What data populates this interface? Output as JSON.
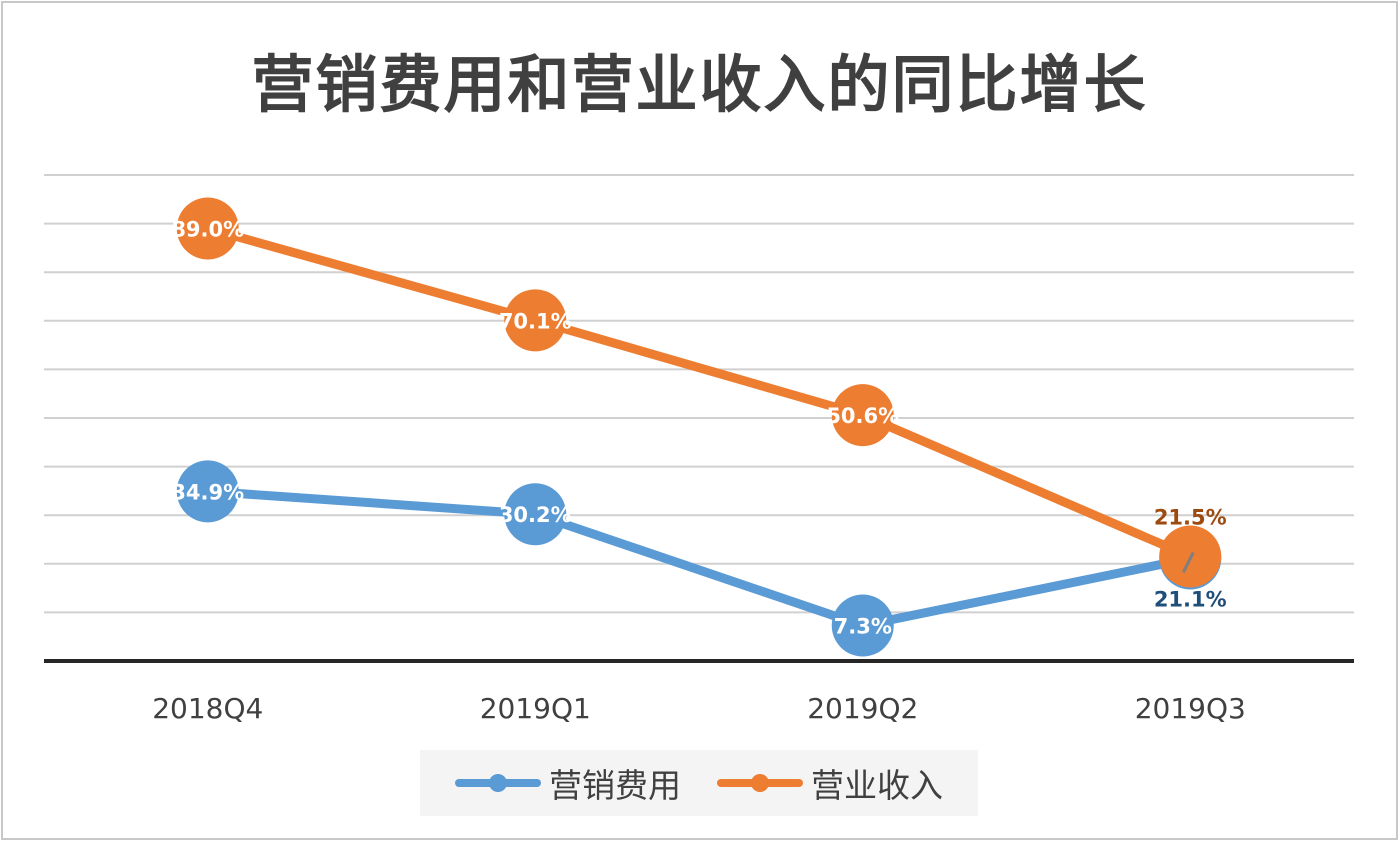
{
  "chart_data": {
    "type": "line",
    "title": "营销费用和营业收入的同比增长",
    "categories": [
      "2018Q4",
      "2019Q1",
      "2019Q2",
      "2019Q3"
    ],
    "series": [
      {
        "name": "营销费用",
        "values": [
          34.9,
          30.2,
          7.3,
          21.1
        ],
        "labels": [
          "34.9%",
          "30.2%",
          "7.3%",
          "21.1%"
        ],
        "color": "#5b9bd5"
      },
      {
        "name": "营业收入",
        "values": [
          89.0,
          70.1,
          50.6,
          21.5
        ],
        "labels": [
          "89.0%",
          "70.1%",
          "50.6%",
          "21.5%"
        ],
        "color": "#ed7d31"
      }
    ],
    "ylim": [
      0,
      100
    ],
    "grid": true,
    "legend": "bottom",
    "xlabel": "",
    "ylabel": ""
  }
}
